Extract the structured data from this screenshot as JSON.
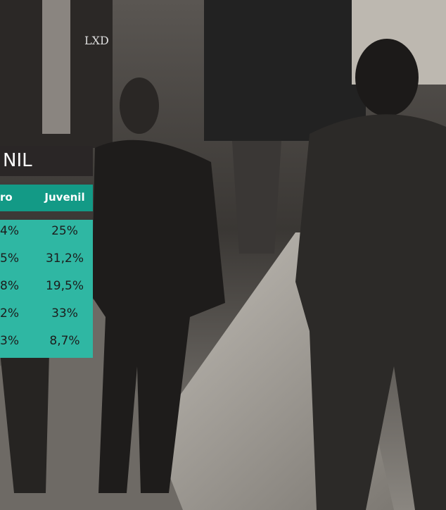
{
  "header": {
    "title": "NIL"
  },
  "sign": "LXD",
  "table": {
    "columns": [
      "ro",
      "Juvenil"
    ],
    "rows": [
      [
        "4%",
        "25%"
      ],
      [
        "5%",
        "31,2%"
      ],
      [
        "8%",
        "19,5%"
      ],
      [
        "2%",
        "33%"
      ],
      [
        "3%",
        "8,7%"
      ]
    ]
  }
}
